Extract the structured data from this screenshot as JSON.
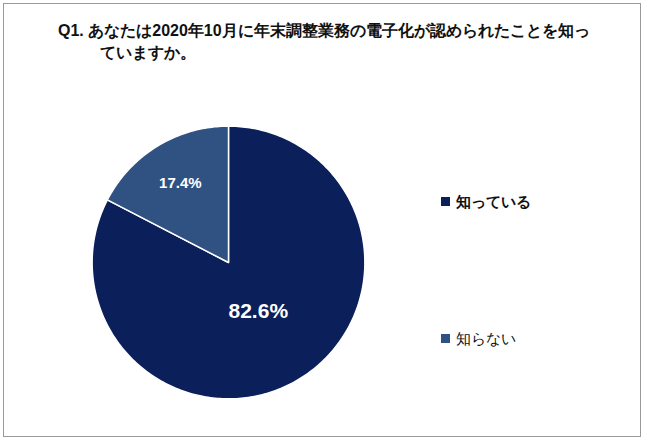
{
  "chart_data": {
    "type": "pie",
    "title": "Q1. あなたは2020年10月に年末調整業務の電子化が認められたことを知っていますか。",
    "categories": [
      "知っている",
      "知らない"
    ],
    "values": [
      82.6,
      17.4
    ],
    "value_labels": [
      "82.6%",
      "17.4%"
    ],
    "colors": [
      "#0b1f5b",
      "#2f5283"
    ],
    "data_labels": true,
    "legend": "right"
  }
}
